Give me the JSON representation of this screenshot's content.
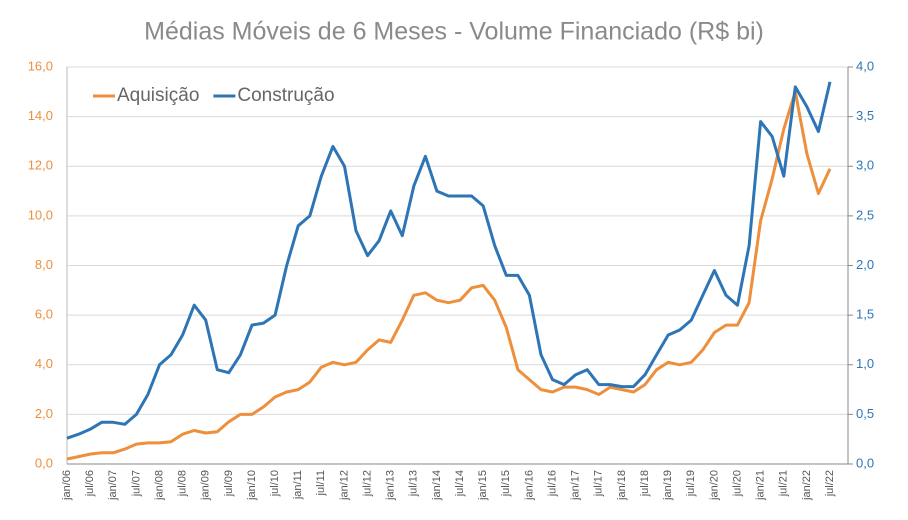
{
  "chart_data": {
    "type": "line",
    "title": "Médias Móveis de 6 Meses - Volume Financiado (R$ bi)",
    "categories": [
      "jan/06",
      null,
      "jul/06",
      null,
      "jan/07",
      null,
      "jul/07",
      null,
      "jan/08",
      null,
      "jul/08",
      null,
      "jan/09",
      null,
      "jul/09",
      null,
      "jan/10",
      null,
      "jul/10",
      null,
      "jan/11",
      null,
      "jul/11",
      null,
      "jan/12",
      null,
      "jul/12",
      null,
      "jan/13",
      null,
      "jul/13",
      null,
      "jan/14",
      null,
      "jul/14",
      null,
      "jan/15",
      null,
      "jul/15",
      null,
      "jan/16",
      null,
      "jul/16",
      null,
      "jan/17",
      null,
      "jul/17",
      null,
      "jan/18",
      null,
      "jul/18",
      null,
      "jan/19",
      null,
      "jul/19",
      null,
      "jan/20",
      null,
      "jul/20",
      null,
      "jan/21",
      null,
      "jul/21",
      null,
      "jan/22",
      null,
      "jul/22"
    ],
    "series": [
      {
        "name": "Aquisição",
        "color": "#ed8f3c",
        "axis": "y",
        "values": [
          0.2,
          0.3,
          0.4,
          0.45,
          0.45,
          0.6,
          0.8,
          0.85,
          0.85,
          0.9,
          1.2,
          1.35,
          1.25,
          1.3,
          1.7,
          2.0,
          2.0,
          2.3,
          2.7,
          2.9,
          3.0,
          3.3,
          3.9,
          4.1,
          4.0,
          4.1,
          4.6,
          5.0,
          4.9,
          5.8,
          6.8,
          6.9,
          6.6,
          6.5,
          6.6,
          7.1,
          7.2,
          6.6,
          5.5,
          3.8,
          3.4,
          3.0,
          2.9,
          3.1,
          3.1,
          3.0,
          2.8,
          3.1,
          3.0,
          2.9,
          3.2,
          3.8,
          4.1,
          4.0,
          4.1,
          4.6,
          5.3,
          5.6,
          5.6,
          6.5,
          9.8,
          11.5,
          13.5,
          15.0,
          12.5,
          10.9,
          11.9
        ]
      },
      {
        "name": "Construção",
        "color": "#2e75b6",
        "axis": "y2",
        "values": [
          0.26,
          0.3,
          0.35,
          0.42,
          0.42,
          0.4,
          0.5,
          0.7,
          1.0,
          1.1,
          1.3,
          1.6,
          1.45,
          0.95,
          0.92,
          1.1,
          1.4,
          1.42,
          1.5,
          2.0,
          2.4,
          2.5,
          2.9,
          3.2,
          3.0,
          2.35,
          2.1,
          2.25,
          2.55,
          2.3,
          2.8,
          3.1,
          2.75,
          2.7,
          2.7,
          2.7,
          2.6,
          2.2,
          1.9,
          1.9,
          1.7,
          1.1,
          0.85,
          0.8,
          0.9,
          0.95,
          0.8,
          0.8,
          0.78,
          0.78,
          0.9,
          1.1,
          1.3,
          1.35,
          1.45,
          1.7,
          1.95,
          1.7,
          1.6,
          2.2,
          3.45,
          3.3,
          2.9,
          3.8,
          3.6,
          3.35,
          3.85
        ]
      }
    ],
    "ylim": [
      0,
      16
    ],
    "yticks": [
      {
        "value": 0,
        "label": "0,0"
      },
      {
        "value": 2,
        "label": "2,0"
      },
      {
        "value": 4,
        "label": "4,0"
      },
      {
        "value": 6,
        "label": "6,0"
      },
      {
        "value": 8,
        "label": "8,0"
      },
      {
        "value": 10,
        "label": "10,0"
      },
      {
        "value": 12,
        "label": "12,0"
      },
      {
        "value": 14,
        "label": "14,0"
      },
      {
        "value": 16,
        "label": "16,0"
      }
    ],
    "y2lim": [
      0,
      4
    ],
    "y2ticks": [
      {
        "value": 0,
        "label": "0,0"
      },
      {
        "value": 0.5,
        "label": "0,5"
      },
      {
        "value": 1,
        "label": "1,0"
      },
      {
        "value": 1.5,
        "label": "1,5"
      },
      {
        "value": 2,
        "label": "2,0"
      },
      {
        "value": 2.5,
        "label": "2,5"
      },
      {
        "value": 3,
        "label": "3,0"
      },
      {
        "value": 3.5,
        "label": "3,5"
      },
      {
        "value": 4,
        "label": "4,0"
      }
    ],
    "grid": true,
    "legend": "top-left"
  }
}
